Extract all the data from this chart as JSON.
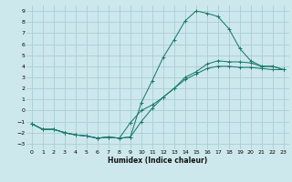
{
  "bg_color": "#cce8ec",
  "grid_color": "#aacdd4",
  "line_color": "#1a7a6e",
  "marker": "+",
  "xlabel": "Humidex (Indice chaleur)",
  "xlim": [
    -0.5,
    23.5
  ],
  "ylim": [
    -3.5,
    9.5
  ],
  "xticks": [
    0,
    1,
    2,
    3,
    4,
    5,
    6,
    7,
    8,
    9,
    10,
    11,
    12,
    13,
    14,
    15,
    16,
    17,
    18,
    19,
    20,
    21,
    22,
    23
  ],
  "yticks": [
    -3,
    -2,
    -1,
    0,
    1,
    2,
    3,
    4,
    5,
    6,
    7,
    8,
    9
  ],
  "curve1_x": [
    0,
    1,
    2,
    3,
    4,
    5,
    6,
    7,
    8,
    9,
    10,
    11,
    12,
    13,
    14,
    15,
    16,
    17,
    18,
    19,
    20,
    21,
    22,
    23
  ],
  "curve1_y": [
    -1.2,
    -1.7,
    -1.7,
    -2.0,
    -2.2,
    -2.3,
    -2.5,
    -2.4,
    -2.5,
    -2.4,
    0.7,
    2.7,
    4.8,
    6.4,
    8.1,
    9.0,
    8.8,
    8.5,
    7.4,
    5.6,
    4.5,
    4.0,
    4.0,
    3.7
  ],
  "curve2_x": [
    0,
    1,
    2,
    3,
    4,
    5,
    6,
    7,
    8,
    9,
    10,
    11,
    12,
    13,
    14,
    15,
    16,
    17,
    18,
    19,
    20,
    21,
    22,
    23
  ],
  "curve2_y": [
    -1.2,
    -1.7,
    -1.7,
    -2.0,
    -2.2,
    -2.3,
    -2.5,
    -2.4,
    -2.5,
    -1.1,
    0.0,
    0.5,
    1.2,
    2.0,
    3.0,
    3.5,
    4.2,
    4.5,
    4.4,
    4.4,
    4.3,
    4.0,
    4.0,
    3.7
  ],
  "curve3_x": [
    0,
    1,
    2,
    3,
    4,
    5,
    6,
    7,
    8,
    9,
    10,
    11,
    12,
    13,
    14,
    15,
    16,
    17,
    18,
    19,
    20,
    21,
    22,
    23
  ],
  "curve3_y": [
    -1.2,
    -1.7,
    -1.7,
    -2.0,
    -2.2,
    -2.3,
    -2.5,
    -2.4,
    -2.5,
    -2.4,
    -1.0,
    0.2,
    1.2,
    2.0,
    2.8,
    3.3,
    3.8,
    4.0,
    4.0,
    3.9,
    3.9,
    3.8,
    3.7,
    3.7
  ]
}
